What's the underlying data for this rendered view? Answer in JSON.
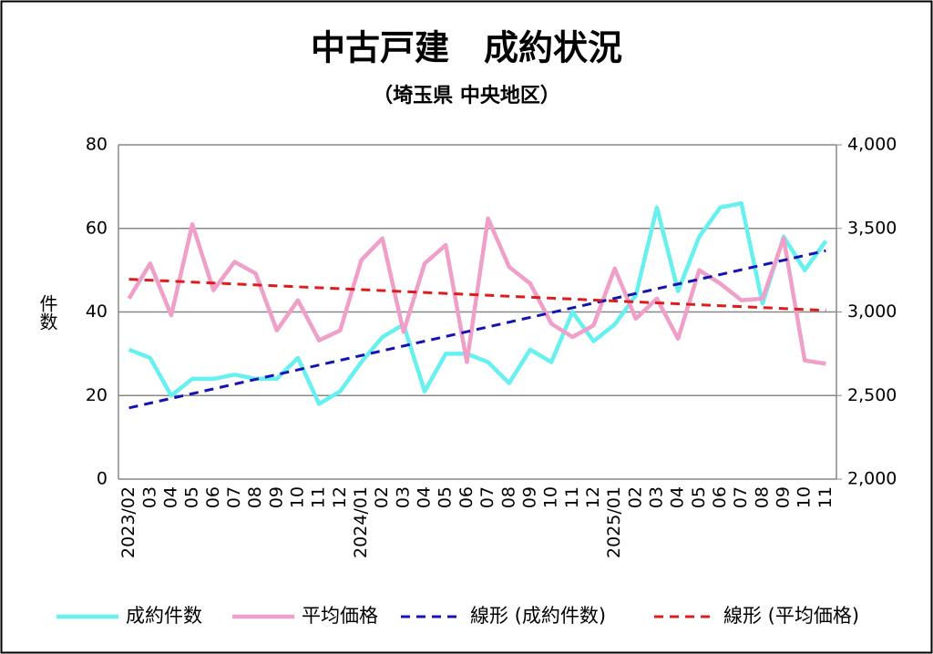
{
  "chart_data": {
    "type": "line",
    "title": "中古戸建　成約状況",
    "subtitle": "（埼玉県 中央地区）",
    "y_label": "件数",
    "categories": [
      "2023/02",
      "03",
      "04",
      "05",
      "06",
      "07",
      "08",
      "09",
      "10",
      "11",
      "12",
      "2024/01",
      "02",
      "03",
      "04",
      "05",
      "06",
      "07",
      "08",
      "09",
      "10",
      "11",
      "12",
      "2025/01",
      "02",
      "03",
      "04",
      "05",
      "06",
      "07",
      "08",
      "09",
      "10",
      "11"
    ],
    "series": [
      {
        "name": "成約件数",
        "color": "#66f0f0",
        "axis": "y",
        "values": [
          31,
          29,
          20,
          24,
          24,
          25,
          24,
          24,
          29,
          18,
          21,
          28,
          34,
          37,
          21,
          30,
          30,
          28,
          23,
          31,
          28,
          40,
          33,
          37,
          44,
          65,
          45,
          58,
          65,
          66,
          42,
          58,
          50,
          57
        ],
        "trendline": {
          "name": "線形 (成約件数)",
          "color": "#1414b4"
        }
      },
      {
        "name": "平均価格",
        "color": "#f0a0c8",
        "axis": "y2",
        "values": [
          3080,
          3290,
          2980,
          3525,
          3130,
          3300,
          3230,
          2890,
          3070,
          2830,
          2890,
          3310,
          3440,
          2880,
          3290,
          3400,
          2700,
          3560,
          3270,
          3170,
          2930,
          2850,
          2920,
          3260,
          2960,
          3080,
          2840,
          3250,
          3170,
          3070,
          3080,
          3440,
          2710,
          2690
        ],
        "trendline": {
          "name": "線形 (平均価格)",
          "color": "#dd1c1c"
        }
      }
    ],
    "ylim": [
      0,
      80
    ],
    "yticks": [
      0,
      20,
      40,
      60,
      80
    ],
    "y2lim": [
      2000,
      4000
    ],
    "y2ticks": [
      {
        "value": 2000,
        "label": "2,000"
      },
      {
        "value": 2500,
        "label": "2,500"
      },
      {
        "value": 3000,
        "label": "3,000"
      },
      {
        "value": 3500,
        "label": "3,500"
      },
      {
        "value": 4000,
        "label": "4,000"
      }
    ],
    "grid": true,
    "legend": "bottom"
  }
}
